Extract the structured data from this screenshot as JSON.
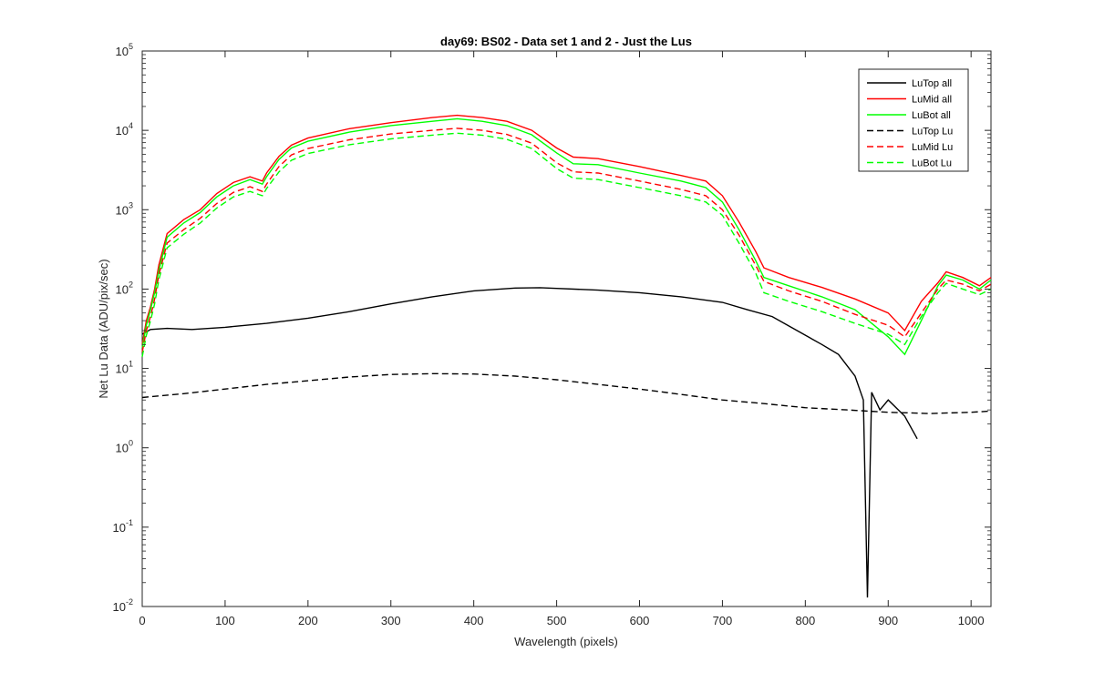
{
  "chart_data": {
    "type": "line",
    "title": "day69: BS02 - Data set 1 and 2 - Just the Lus",
    "xlabel": "Wavelength (pixels)",
    "ylabel": "Net Lu Data (ADU/pix/sec)",
    "xlim": [
      0,
      1024
    ],
    "ylim": [
      0.01,
      100000
    ],
    "yscale": "log",
    "x_ticks": [
      "0",
      "100",
      "200",
      "300",
      "400",
      "500",
      "600",
      "700",
      "800",
      "900",
      "1000"
    ],
    "y_tick_exponents": [
      "-2",
      "-1",
      "0",
      "1",
      "2",
      "3",
      "4",
      "5"
    ],
    "y_tick_base": "10",
    "grid": false,
    "legend_position": "top-right",
    "series": [
      {
        "name": "LuTop  all",
        "color": "#000000",
        "dash": "solid",
        "x": [
          0,
          10,
          30,
          60,
          100,
          150,
          200,
          250,
          300,
          350,
          400,
          450,
          480,
          500,
          550,
          600,
          650,
          700,
          730,
          760,
          790,
          820,
          840,
          860,
          870,
          875,
          880,
          890,
          900,
          920,
          935
        ],
        "y": [
          27,
          31,
          32,
          31,
          33,
          37,
          43,
          52,
          65,
          80,
          95,
          103,
          104,
          102,
          97,
          90,
          80,
          68,
          55,
          45,
          30,
          20,
          15,
          8,
          4,
          0.013,
          5,
          3,
          4,
          2.5,
          1.3
        ]
      },
      {
        "name": "LuMid  all",
        "color": "#ff0000",
        "dash": "solid",
        "x": [
          0,
          5,
          10,
          15,
          20,
          30,
          50,
          70,
          90,
          110,
          130,
          145,
          150,
          165,
          180,
          200,
          250,
          300,
          350,
          380,
          410,
          440,
          470,
          500,
          520,
          550,
          600,
          650,
          680,
          700,
          720,
          740,
          750,
          780,
          820,
          860,
          900,
          920,
          940,
          960,
          970,
          990,
          1010,
          1024
        ],
        "y": [
          20,
          40,
          60,
          100,
          200,
          500,
          750,
          1000,
          1600,
          2200,
          2600,
          2300,
          2900,
          4700,
          6500,
          8000,
          10500,
          12500,
          14500,
          15500,
          14500,
          13000,
          10000,
          6000,
          4600,
          4400,
          3500,
          2700,
          2300,
          1500,
          700,
          300,
          185,
          140,
          105,
          75,
          50,
          30,
          70,
          120,
          165,
          140,
          110,
          140
        ]
      },
      {
        "name": "LuBot  all",
        "color": "#00ff00",
        "dash": "solid",
        "x": [
          0,
          5,
          10,
          15,
          20,
          30,
          50,
          70,
          90,
          110,
          130,
          145,
          150,
          165,
          180,
          200,
          250,
          300,
          350,
          380,
          410,
          440,
          470,
          500,
          520,
          550,
          600,
          650,
          680,
          700,
          720,
          740,
          750,
          780,
          820,
          860,
          900,
          920,
          940,
          960,
          970,
          990,
          1010,
          1024
        ],
        "y": [
          18,
          35,
          55,
          90,
          170,
          450,
          680,
          920,
          1450,
          2000,
          2400,
          2100,
          2600,
          4300,
          6000,
          7300,
          9500,
          11500,
          13000,
          14000,
          13000,
          11500,
          8800,
          5200,
          3800,
          3700,
          2900,
          2300,
          1900,
          1250,
          560,
          230,
          140,
          110,
          80,
          55,
          25,
          15,
          40,
          110,
          150,
          130,
          100,
          130
        ]
      },
      {
        "name": "LuTop  Lu",
        "color": "#000000",
        "dash": "dash",
        "x": [
          0,
          20,
          50,
          100,
          150,
          200,
          250,
          300,
          350,
          400,
          450,
          500,
          550,
          600,
          650,
          700,
          750,
          800,
          850,
          900,
          950,
          1000,
          1024
        ],
        "y": [
          4.3,
          4.5,
          4.8,
          5.5,
          6.3,
          7.0,
          7.8,
          8.4,
          8.6,
          8.5,
          8.0,
          7.2,
          6.3,
          5.5,
          4.7,
          4.0,
          3.6,
          3.2,
          3.0,
          2.8,
          2.7,
          2.8,
          2.9
        ]
      },
      {
        "name": "LuMid  Lu",
        "color": "#ff0000",
        "dash": "dash",
        "x": [
          0,
          5,
          10,
          15,
          20,
          30,
          50,
          70,
          90,
          110,
          130,
          145,
          150,
          165,
          180,
          200,
          250,
          300,
          350,
          380,
          410,
          440,
          470,
          500,
          520,
          550,
          600,
          650,
          680,
          700,
          720,
          740,
          750,
          780,
          820,
          860,
          900,
          920,
          940,
          960,
          970,
          990,
          1010,
          1024
        ],
        "y": [
          16,
          30,
          45,
          75,
          150,
          380,
          560,
          780,
          1200,
          1650,
          1950,
          1700,
          2100,
          3500,
          4900,
          5900,
          7600,
          9000,
          10000,
          10600,
          10000,
          8900,
          6900,
          3900,
          3000,
          2900,
          2300,
          1800,
          1500,
          1000,
          480,
          200,
          125,
          95,
          70,
          48,
          35,
          25,
          50,
          100,
          130,
          115,
          95,
          115
        ]
      },
      {
        "name": "LuBot  Lu",
        "color": "#00ff00",
        "dash": "dash",
        "x": [
          0,
          5,
          10,
          15,
          20,
          30,
          50,
          70,
          90,
          110,
          130,
          145,
          150,
          165,
          180,
          200,
          250,
          300,
          350,
          380,
          410,
          440,
          470,
          500,
          520,
          550,
          600,
          650,
          680,
          700,
          720,
          740,
          750,
          780,
          820,
          860,
          900,
          920,
          940,
          960,
          970,
          990,
          1010,
          1024
        ],
        "y": [
          14,
          26,
          40,
          65,
          130,
          330,
          490,
          680,
          1050,
          1450,
          1700,
          1500,
          1850,
          3000,
          4200,
          5100,
          6600,
          7800,
          8700,
          9200,
          8700,
          7700,
          5900,
          3300,
          2500,
          2400,
          1900,
          1500,
          1250,
          850,
          380,
          160,
          90,
          70,
          52,
          37,
          27,
          20,
          45,
          90,
          118,
          100,
          85,
          100
        ]
      }
    ]
  }
}
